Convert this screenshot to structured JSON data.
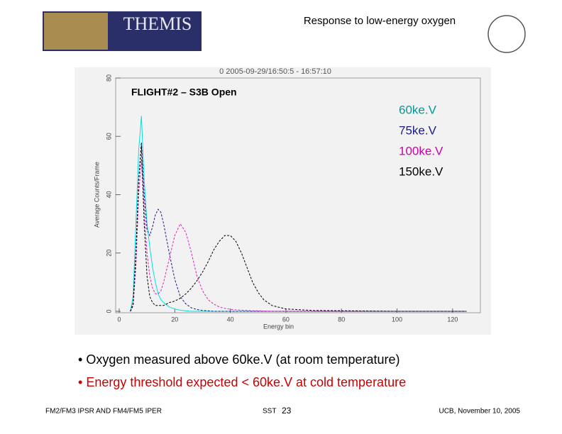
{
  "logo_text": "THEMIS",
  "slide_title": "Response to low-energy oxygen",
  "chart_data": {
    "type": "line",
    "title": "0 2005-09-29/16:50:5 - 16:57:10",
    "annotation": "FLIGHT#2 – S3B Open",
    "x_label": "Energy bin",
    "y_label": "Average Counts/Frame",
    "x": [
      4,
      5,
      6,
      7,
      8,
      9,
      10,
      11,
      12,
      13,
      14,
      15,
      16,
      18,
      20,
      22,
      24,
      26,
      28,
      30,
      32,
      34,
      36,
      38,
      40,
      42,
      44,
      46,
      48,
      50,
      52,
      55,
      60,
      70,
      80,
      90,
      100,
      110,
      120,
      125
    ],
    "series": [
      {
        "name": "60ke.V",
        "color": "#00e0e0",
        "text_color": "#009999",
        "values": [
          0,
          5,
          30,
          55,
          67,
          45,
          30,
          22,
          15,
          10,
          6,
          4,
          3,
          1.5,
          0.8,
          0.4,
          0.2,
          0,
          0,
          0,
          0,
          0,
          0,
          0,
          0,
          0,
          0,
          0,
          0,
          0,
          0,
          0,
          0,
          0,
          0,
          0,
          0,
          0,
          0,
          0
        ]
      },
      {
        "name": "75ke.V",
        "color": "#1a1a80",
        "text_color": "#1a1a80",
        "values": [
          0,
          3,
          20,
          45,
          58,
          40,
          28,
          26,
          29,
          33,
          35,
          34,
          30,
          20,
          11,
          5,
          2.5,
          1.2,
          0.6,
          0.3,
          0.2,
          0,
          0,
          0,
          0,
          0,
          0,
          0,
          0,
          0,
          0,
          0,
          0,
          0,
          0,
          0,
          0,
          0,
          0,
          0
        ]
      },
      {
        "name": "100ke.V",
        "color": "#e020c0",
        "text_color": "#cc00aa",
        "values": [
          0,
          2,
          15,
          40,
          52,
          35,
          20,
          12,
          8,
          6,
          6,
          7,
          10,
          18,
          26,
          30,
          27,
          20,
          12,
          7,
          4,
          2.5,
          1.5,
          1,
          0.7,
          0.5,
          0.4,
          0.3,
          0.2,
          0.2,
          0.1,
          0,
          0,
          0,
          0,
          0,
          0,
          0,
          0,
          0
        ]
      },
      {
        "name": "150ke.V",
        "color": "#000000",
        "text_color": "#000000",
        "values": [
          0,
          2,
          20,
          45,
          57,
          30,
          12,
          5,
          3,
          2,
          2,
          2,
          2,
          3,
          3.5,
          4.5,
          6,
          8,
          10.5,
          13.5,
          17,
          21,
          24,
          26,
          26,
          24,
          20,
          15,
          10,
          6.5,
          4,
          2,
          0.8,
          0.3,
          0.2,
          0.1,
          0,
          0,
          0,
          0
        ]
      }
    ],
    "xlim": [
      0,
      130
    ],
    "ylim": [
      0,
      80
    ],
    "xticks": [
      0,
      20,
      40,
      60,
      80,
      100,
      120
    ],
    "yticks": [
      0,
      20,
      40,
      60,
      80
    ]
  },
  "bullets": [
    "Oxygen measured above 60ke.V (at room temperature)",
    "Energy threshold expected < 60ke.V at cold temperature"
  ],
  "footer": {
    "left": "FM2/FM3 IPSR AND FM4/FM5 IPER",
    "center_label": "SST",
    "page_number": "23",
    "right": "UCB, November 10, 2005"
  }
}
